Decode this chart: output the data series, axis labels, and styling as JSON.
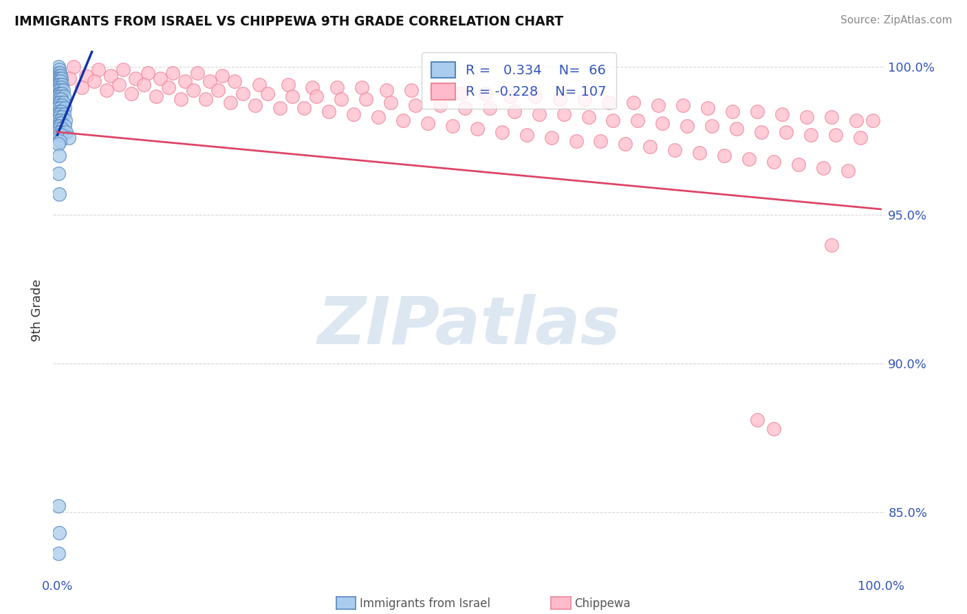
{
  "title": "IMMIGRANTS FROM ISRAEL VS CHIPPEWA 9TH GRADE CORRELATION CHART",
  "source_text": "Source: ZipAtlas.com",
  "ylabel": "9th Grade",
  "xlim": [
    -0.005,
    1.005
  ],
  "ylim": [
    0.828,
    1.008
  ],
  "ytick_vals": [
    0.85,
    0.9,
    0.95,
    1.0
  ],
  "ytick_labels": [
    "85.0%",
    "90.0%",
    "95.0%",
    "100.0%"
  ],
  "xtick_vals": [
    0.0,
    1.0
  ],
  "xtick_labels": [
    "0.0%",
    "100.0%"
  ],
  "legend_blue_r": "0.334",
  "legend_blue_n": "66",
  "legend_pink_r": "-0.228",
  "legend_pink_n": "107",
  "blue_color": "#AACCEE",
  "blue_edge": "#5588BB",
  "blue_line_color": "#1133AA",
  "pink_color": "#FFBBCC",
  "pink_edge": "#EE8899",
  "pink_line_color": "#DD4466",
  "watermark_color": "#C5D8E8",
  "grid_color": "#CCCCCC",
  "title_color": "#111111",
  "source_color": "#888888",
  "tick_color": "#3355BB",
  "label_color": "#333333",
  "blue_dots": [
    [
      0.001,
      1.0
    ],
    [
      0.002,
      0.999
    ],
    [
      0.001,
      0.998
    ],
    [
      0.003,
      0.998
    ],
    [
      0.002,
      0.997
    ],
    [
      0.004,
      0.997
    ],
    [
      0.001,
      0.996
    ],
    [
      0.003,
      0.996
    ],
    [
      0.005,
      0.996
    ],
    [
      0.002,
      0.995
    ],
    [
      0.004,
      0.995
    ],
    [
      0.001,
      0.994
    ],
    [
      0.003,
      0.994
    ],
    [
      0.006,
      0.994
    ],
    [
      0.002,
      0.993
    ],
    [
      0.005,
      0.993
    ],
    [
      0.001,
      0.992
    ],
    [
      0.004,
      0.992
    ],
    [
      0.007,
      0.992
    ],
    [
      0.002,
      0.991
    ],
    [
      0.003,
      0.991
    ],
    [
      0.006,
      0.991
    ],
    [
      0.001,
      0.99
    ],
    [
      0.004,
      0.99
    ],
    [
      0.008,
      0.99
    ],
    [
      0.002,
      0.989
    ],
    [
      0.005,
      0.989
    ],
    [
      0.001,
      0.988
    ],
    [
      0.003,
      0.988
    ],
    [
      0.007,
      0.988
    ],
    [
      0.002,
      0.987
    ],
    [
      0.006,
      0.987
    ],
    [
      0.001,
      0.986
    ],
    [
      0.004,
      0.986
    ],
    [
      0.009,
      0.986
    ],
    [
      0.002,
      0.985
    ],
    [
      0.005,
      0.985
    ],
    [
      0.001,
      0.984
    ],
    [
      0.003,
      0.984
    ],
    [
      0.008,
      0.984
    ],
    [
      0.002,
      0.983
    ],
    [
      0.006,
      0.983
    ],
    [
      0.001,
      0.982
    ],
    [
      0.004,
      0.982
    ],
    [
      0.01,
      0.982
    ],
    [
      0.002,
      0.981
    ],
    [
      0.005,
      0.981
    ],
    [
      0.001,
      0.98
    ],
    [
      0.003,
      0.98
    ],
    [
      0.009,
      0.98
    ],
    [
      0.002,
      0.979
    ],
    [
      0.006,
      0.979
    ],
    [
      0.001,
      0.978
    ],
    [
      0.004,
      0.978
    ],
    [
      0.011,
      0.978
    ],
    [
      0.002,
      0.977
    ],
    [
      0.005,
      0.977
    ],
    [
      0.014,
      0.976
    ],
    [
      0.003,
      0.975
    ],
    [
      0.001,
      0.974
    ],
    [
      0.002,
      0.97
    ],
    [
      0.001,
      0.964
    ],
    [
      0.002,
      0.957
    ],
    [
      0.001,
      0.852
    ],
    [
      0.002,
      0.843
    ],
    [
      0.001,
      0.836
    ]
  ],
  "pink_dots": [
    [
      0.02,
      1.0
    ],
    [
      0.05,
      0.999
    ],
    [
      0.08,
      0.999
    ],
    [
      0.11,
      0.998
    ],
    [
      0.14,
      0.998
    ],
    [
      0.17,
      0.998
    ],
    [
      0.2,
      0.997
    ],
    [
      0.035,
      0.997
    ],
    [
      0.065,
      0.997
    ],
    [
      0.095,
      0.996
    ],
    [
      0.125,
      0.996
    ],
    [
      0.155,
      0.995
    ],
    [
      0.185,
      0.995
    ],
    [
      0.215,
      0.995
    ],
    [
      0.245,
      0.994
    ],
    [
      0.28,
      0.994
    ],
    [
      0.31,
      0.993
    ],
    [
      0.34,
      0.993
    ],
    [
      0.37,
      0.993
    ],
    [
      0.4,
      0.992
    ],
    [
      0.43,
      0.992
    ],
    [
      0.46,
      0.992
    ],
    [
      0.49,
      0.991
    ],
    [
      0.52,
      0.991
    ],
    [
      0.55,
      0.99
    ],
    [
      0.58,
      0.99
    ],
    [
      0.61,
      0.989
    ],
    [
      0.64,
      0.989
    ],
    [
      0.67,
      0.988
    ],
    [
      0.7,
      0.988
    ],
    [
      0.73,
      0.987
    ],
    [
      0.76,
      0.987
    ],
    [
      0.79,
      0.986
    ],
    [
      0.82,
      0.985
    ],
    [
      0.85,
      0.985
    ],
    [
      0.88,
      0.984
    ],
    [
      0.91,
      0.983
    ],
    [
      0.94,
      0.983
    ],
    [
      0.97,
      0.982
    ],
    [
      0.99,
      0.982
    ],
    [
      0.015,
      0.996
    ],
    [
      0.045,
      0.995
    ],
    [
      0.075,
      0.994
    ],
    [
      0.105,
      0.994
    ],
    [
      0.135,
      0.993
    ],
    [
      0.165,
      0.992
    ],
    [
      0.195,
      0.992
    ],
    [
      0.225,
      0.991
    ],
    [
      0.255,
      0.991
    ],
    [
      0.285,
      0.99
    ],
    [
      0.315,
      0.99
    ],
    [
      0.345,
      0.989
    ],
    [
      0.375,
      0.989
    ],
    [
      0.405,
      0.988
    ],
    [
      0.435,
      0.987
    ],
    [
      0.465,
      0.987
    ],
    [
      0.495,
      0.986
    ],
    [
      0.525,
      0.986
    ],
    [
      0.555,
      0.985
    ],
    [
      0.585,
      0.984
    ],
    [
      0.615,
      0.984
    ],
    [
      0.645,
      0.983
    ],
    [
      0.675,
      0.982
    ],
    [
      0.705,
      0.982
    ],
    [
      0.735,
      0.981
    ],
    [
      0.765,
      0.98
    ],
    [
      0.795,
      0.98
    ],
    [
      0.825,
      0.979
    ],
    [
      0.855,
      0.978
    ],
    [
      0.885,
      0.978
    ],
    [
      0.915,
      0.977
    ],
    [
      0.945,
      0.977
    ],
    [
      0.975,
      0.976
    ],
    [
      0.03,
      0.993
    ],
    [
      0.06,
      0.992
    ],
    [
      0.09,
      0.991
    ],
    [
      0.12,
      0.99
    ],
    [
      0.15,
      0.989
    ],
    [
      0.18,
      0.989
    ],
    [
      0.21,
      0.988
    ],
    [
      0.24,
      0.987
    ],
    [
      0.27,
      0.986
    ],
    [
      0.3,
      0.986
    ],
    [
      0.33,
      0.985
    ],
    [
      0.36,
      0.984
    ],
    [
      0.39,
      0.983
    ],
    [
      0.42,
      0.982
    ],
    [
      0.45,
      0.981
    ],
    [
      0.48,
      0.98
    ],
    [
      0.51,
      0.979
    ],
    [
      0.54,
      0.978
    ],
    [
      0.57,
      0.977
    ],
    [
      0.6,
      0.976
    ],
    [
      0.63,
      0.975
    ],
    [
      0.66,
      0.975
    ],
    [
      0.69,
      0.974
    ],
    [
      0.72,
      0.973
    ],
    [
      0.75,
      0.972
    ],
    [
      0.78,
      0.971
    ],
    [
      0.81,
      0.97
    ],
    [
      0.84,
      0.969
    ],
    [
      0.87,
      0.968
    ],
    [
      0.9,
      0.967
    ],
    [
      0.93,
      0.966
    ],
    [
      0.96,
      0.965
    ],
    [
      0.85,
      0.881
    ],
    [
      0.87,
      0.878
    ],
    [
      0.94,
      0.94
    ]
  ],
  "blue_trend_x": [
    0.0,
    0.042
  ],
  "blue_trend_y": [
    0.977,
    1.005
  ],
  "pink_trend_x": [
    0.0,
    1.0
  ],
  "pink_trend_y": [
    0.978,
    0.952
  ]
}
